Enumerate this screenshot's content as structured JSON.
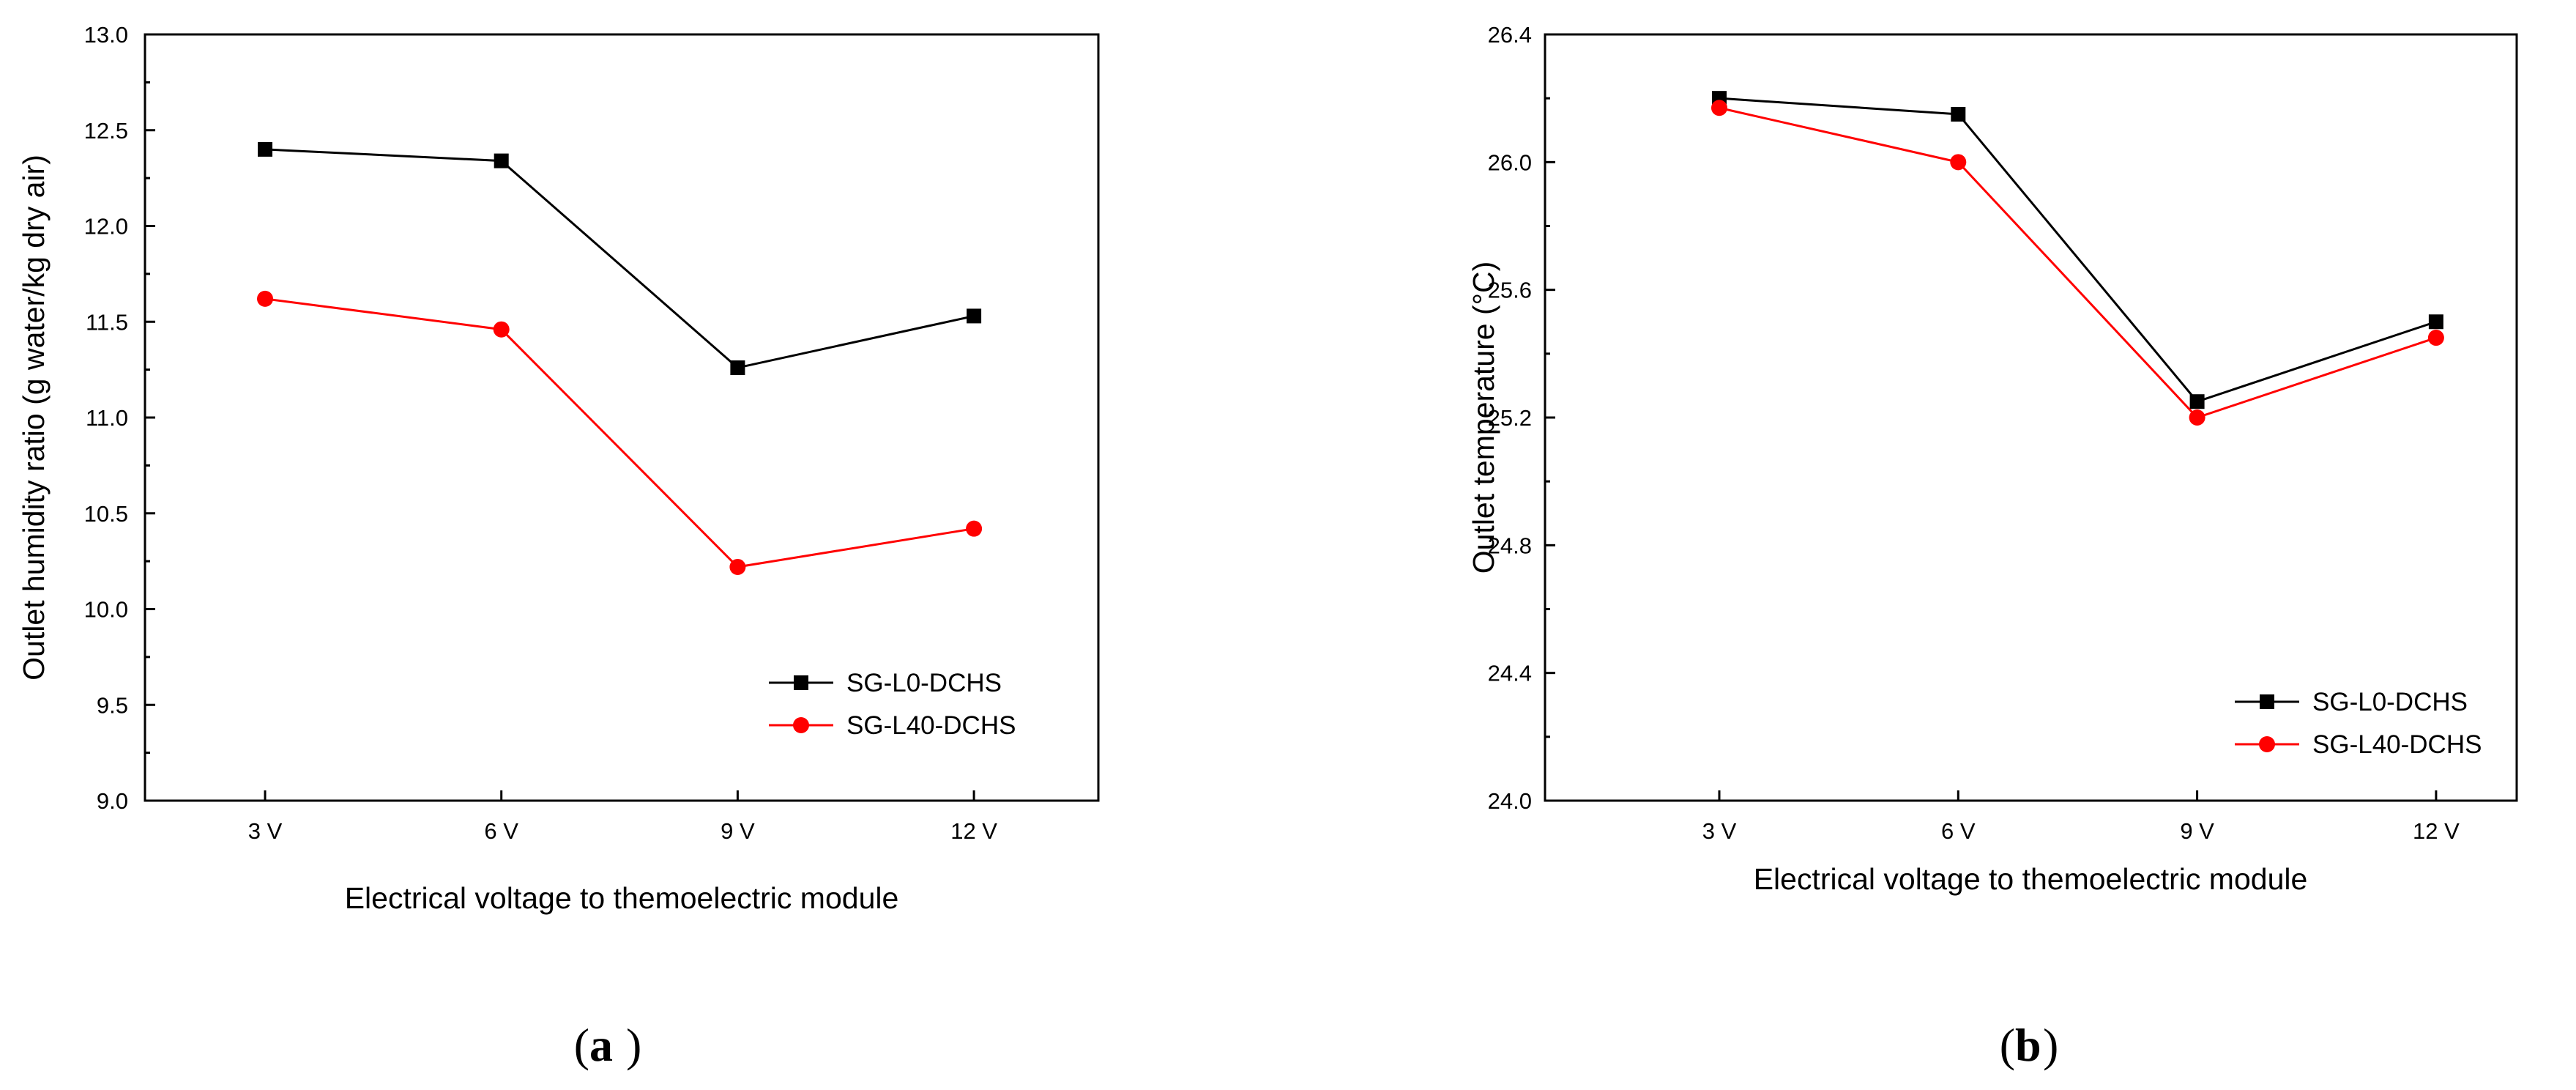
{
  "chart_data": [
    {
      "type": "line",
      "panel_label": "a",
      "title": "",
      "xlabel": "Electrical voltage to themoelectric module",
      "ylabel": "Outlet humidity ratio (g water/kg dry air)",
      "categories": [
        "3 V",
        "6 V",
        "9 V",
        "12 V"
      ],
      "ylim": [
        9.0,
        13.0
      ],
      "yticks": [
        9.0,
        9.5,
        10.0,
        10.5,
        11.0,
        11.5,
        12.0,
        12.5,
        13.0
      ],
      "ytick_labels": [
        "9.0",
        "9.5",
        "10.0",
        "10.5",
        "11.0",
        "11.5",
        "12.0",
        "12.5",
        "13.0"
      ],
      "grid": false,
      "legend_position": "bottom-right",
      "series": [
        {
          "name": "SG-L0-DCHS",
          "color": "#000000",
          "marker": "square",
          "values": [
            12.4,
            12.34,
            11.26,
            11.53
          ]
        },
        {
          "name": "SG-L40-DCHS",
          "color": "#ff0000",
          "marker": "circle",
          "values": [
            11.62,
            11.46,
            10.22,
            10.42
          ]
        }
      ]
    },
    {
      "type": "line",
      "panel_label": "b",
      "title": "",
      "xlabel": "Electrical voltage to themoelectric module",
      "ylabel": "Outlet temperature (°C)",
      "categories": [
        "3 V",
        "6 V",
        "9 V",
        "12 V"
      ],
      "ylim": [
        24.0,
        26.4
      ],
      "yticks": [
        24.0,
        24.4,
        24.8,
        25.2,
        25.6,
        26.0,
        26.4
      ],
      "ytick_labels": [
        "24.0",
        "24.4",
        "24.8",
        "25.2",
        "25.6",
        "26.0",
        "26.4"
      ],
      "grid": false,
      "legend_position": "bottom-right",
      "series": [
        {
          "name": "SG-L0-DCHS",
          "color": "#000000",
          "marker": "square",
          "values": [
            26.2,
            26.15,
            25.25,
            25.5
          ]
        },
        {
          "name": "SG-L40-DCHS",
          "color": "#ff0000",
          "marker": "circle",
          "values": [
            26.17,
            26.0,
            25.2,
            25.45
          ]
        }
      ]
    }
  ]
}
